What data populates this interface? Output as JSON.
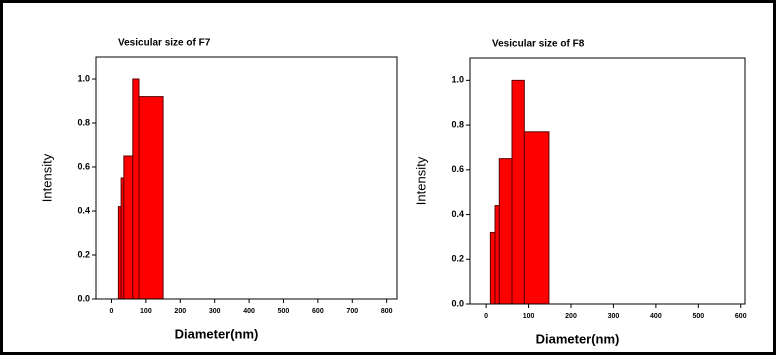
{
  "chart_data": [
    {
      "type": "histogram",
      "title": "Vesicular size of F7",
      "xlabel": "Diameter(nm)",
      "ylabel": "Intensity",
      "bins": [
        20,
        28,
        36,
        62,
        80,
        150
      ],
      "values": [
        0.42,
        0.55,
        0.65,
        1.0,
        0.92
      ],
      "color": "#ff0000",
      "xlim": [
        -45,
        830
      ],
      "ylim": [
        0,
        1.1
      ],
      "xticks": [
        0,
        100,
        200,
        300,
        400,
        500,
        600,
        700,
        800
      ],
      "yticks": [
        {
          "value": 0,
          "label": "0.0"
        },
        0.2,
        0.4,
        0.6,
        0.8,
        {
          "value": 1,
          "label": "1.0"
        }
      ],
      "grid": false
    },
    {
      "type": "histogram",
      "title": "Vesicular size of F8",
      "xlabel": "Diameter(nm)",
      "ylabel": "Intensity",
      "bins": [
        10,
        21,
        31,
        61,
        90,
        148
      ],
      "values": [
        0.32,
        0.44,
        0.65,
        1.0,
        0.77
      ],
      "color": "#ff0000",
      "xlim": [
        -38,
        610
      ],
      "ylim": [
        0,
        1.1
      ],
      "xticks": [
        0,
        100,
        200,
        300,
        400,
        500,
        600
      ],
      "yticks": [
        {
          "value": 0,
          "label": "0.0"
        },
        0.2,
        0.4,
        0.6,
        0.8,
        {
          "value": 1,
          "label": "1.0"
        }
      ],
      "grid": false
    }
  ]
}
